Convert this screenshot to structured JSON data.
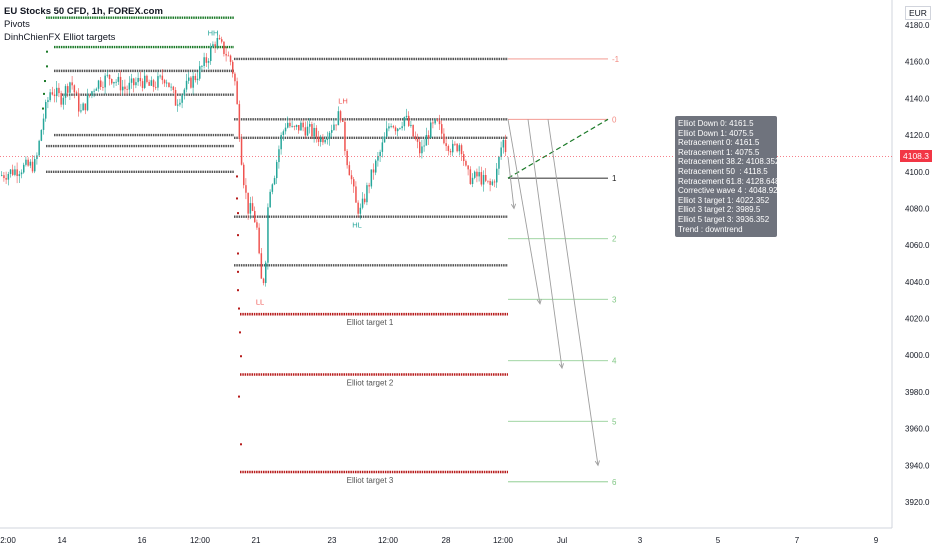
{
  "legend": {
    "symbol": "EU Stocks 50 CFD, 1h, FOREX.com",
    "indicator1": "Pivots",
    "indicator2": "DinhChienFX Elliot targets"
  },
  "currency_label": "EUR",
  "last_price_label": "4108.3",
  "info_box": [
    "Elliot Down 0: 4161.5",
    "Elliot Down 1: 4075.5",
    "Retracement 0: 4161.5",
    "Retracement 1: 4075.5",
    "Retracement 38.2: 4108.352",
    "Retracement 50  : 4118.5",
    "Retracement 61.8: 4128.648",
    "Corrective wave 4 : 4048.926",
    "Elliot 3 target 1: 4022.352",
    "Elliot 3 target 2: 3989.5",
    "Elliot 5 target 3: 3936.352",
    "Trend : downtrend"
  ],
  "colors": {
    "up": "#26a69a",
    "down": "#ef5350",
    "pivot_green": "#1b7a28",
    "pivot_gray": "#555555",
    "target_red": "#b71c1c",
    "fib_red": "#f28b82",
    "fib_green": "#81c784",
    "fib_black": "#444444",
    "arrow": "#9e9e9e",
    "info_bg": "#6f737d",
    "last_price": "#f23645"
  },
  "chart_data": {
    "type": "candlestick",
    "y_axis": {
      "range": [
        3906,
        4192
      ],
      "ticks": [
        4180,
        4160,
        4140,
        4120,
        4100,
        4080,
        4060,
        4040,
        4020,
        4000,
        3980,
        3960,
        3940,
        3920
      ],
      "tick_labels": [
        "4180.0",
        "4160.0",
        "4140.0",
        "4120.0",
        "4100.0",
        "4080.0",
        "4060.0",
        "4040.0",
        "4020.0",
        "4000.0",
        "3980.0",
        "3960.0",
        "3940.0",
        "3920.0"
      ]
    },
    "x_axis": {
      "tick_labels": [
        "2:00",
        "14",
        "16",
        "12:00",
        "21",
        "23",
        "12:00",
        "28",
        "12:00",
        "Jul",
        "3",
        "5",
        "7",
        "9"
      ]
    },
    "pivot_labels": [
      {
        "text": "HH",
        "value": 4172
      },
      {
        "text": "LH",
        "value": 4135
      },
      {
        "text": "HL",
        "value": 4075
      },
      {
        "text": "LL",
        "value": 4033
      }
    ],
    "fib_levels": [
      {
        "label": "-1",
        "value": 4161.5
      },
      {
        "label": "0",
        "value": 4128.6
      },
      {
        "label": "1",
        "value": 4096.5
      },
      {
        "label": "2",
        "value": 4063.5
      },
      {
        "label": "3",
        "value": 4030.5
      },
      {
        "label": "4",
        "value": 3997
      },
      {
        "label": "5",
        "value": 3964
      },
      {
        "label": "6",
        "value": 3931
      }
    ],
    "elliot_targets": [
      {
        "label": "Elliot target 1",
        "value": 4022.352
      },
      {
        "label": "Elliot target 2",
        "value": 3989.5
      },
      {
        "label": "Elliot target 3",
        "value": 3936.352
      }
    ],
    "pivot_lines": [
      4184,
      4168,
      4161.5,
      4155,
      4142,
      4120,
      4118.5,
      4114,
      4100,
      4075.5,
      4049
    ]
  }
}
